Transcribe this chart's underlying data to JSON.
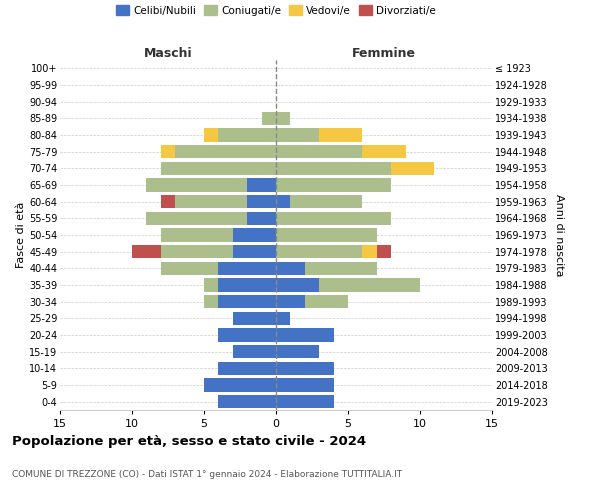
{
  "age_groups": [
    "0-4",
    "5-9",
    "10-14",
    "15-19",
    "20-24",
    "25-29",
    "30-34",
    "35-39",
    "40-44",
    "45-49",
    "50-54",
    "55-59",
    "60-64",
    "65-69",
    "70-74",
    "75-79",
    "80-84",
    "85-89",
    "90-94",
    "95-99",
    "100+"
  ],
  "birth_years": [
    "2019-2023",
    "2014-2018",
    "2009-2013",
    "2004-2008",
    "1999-2003",
    "1994-1998",
    "1989-1993",
    "1984-1988",
    "1979-1983",
    "1974-1978",
    "1969-1973",
    "1964-1968",
    "1959-1963",
    "1954-1958",
    "1949-1953",
    "1944-1948",
    "1939-1943",
    "1934-1938",
    "1929-1933",
    "1924-1928",
    "≤ 1923"
  ],
  "males": {
    "celibi": [
      4,
      5,
      4,
      3,
      4,
      3,
      4,
      4,
      4,
      3,
      3,
      2,
      2,
      2,
      0,
      0,
      0,
      0,
      0,
      0,
      0
    ],
    "coniugati": [
      0,
      0,
      0,
      0,
      0,
      0,
      1,
      1,
      4,
      5,
      5,
      7,
      5,
      7,
      8,
      7,
      4,
      1,
      0,
      0,
      0
    ],
    "vedovi": [
      0,
      0,
      0,
      0,
      0,
      0,
      0,
      0,
      0,
      0,
      0,
      0,
      0,
      0,
      0,
      1,
      1,
      0,
      0,
      0,
      0
    ],
    "divorziati": [
      0,
      0,
      0,
      0,
      0,
      0,
      0,
      0,
      0,
      2,
      0,
      0,
      1,
      0,
      0,
      0,
      0,
      0,
      0,
      0,
      0
    ]
  },
  "females": {
    "nubili": [
      4,
      4,
      4,
      3,
      4,
      1,
      2,
      3,
      2,
      0,
      0,
      0,
      1,
      0,
      0,
      0,
      0,
      0,
      0,
      0,
      0
    ],
    "coniugate": [
      0,
      0,
      0,
      0,
      0,
      0,
      3,
      7,
      5,
      6,
      7,
      8,
      5,
      8,
      8,
      6,
      3,
      1,
      0,
      0,
      0
    ],
    "vedove": [
      0,
      0,
      0,
      0,
      0,
      0,
      0,
      0,
      0,
      1,
      0,
      0,
      0,
      0,
      3,
      3,
      3,
      0,
      0,
      0,
      0
    ],
    "divorziate": [
      0,
      0,
      0,
      0,
      0,
      0,
      0,
      0,
      0,
      1,
      0,
      0,
      0,
      0,
      0,
      0,
      0,
      0,
      0,
      0,
      0
    ]
  },
  "colors": {
    "celibi": "#4472C4",
    "coniugati": "#ABBE8C",
    "vedovi": "#F4C842",
    "divorziati": "#C0504D"
  },
  "xlim": 15,
  "title": "Popolazione per età, sesso e stato civile - 2024",
  "subtitle": "COMUNE DI TREZZONE (CO) - Dati ISTAT 1° gennaio 2024 - Elaborazione TUTTITALIA.IT",
  "ylabel_left": "Fasce di età",
  "ylabel_right": "Anni di nascita",
  "xlabel_left": "Maschi",
  "xlabel_right": "Femmine",
  "legend_labels": [
    "Celibi/Nubili",
    "Coniugati/e",
    "Vedovi/e",
    "Divorziati/e"
  ],
  "background_color": "#ffffff",
  "grid_color": "#cccccc"
}
